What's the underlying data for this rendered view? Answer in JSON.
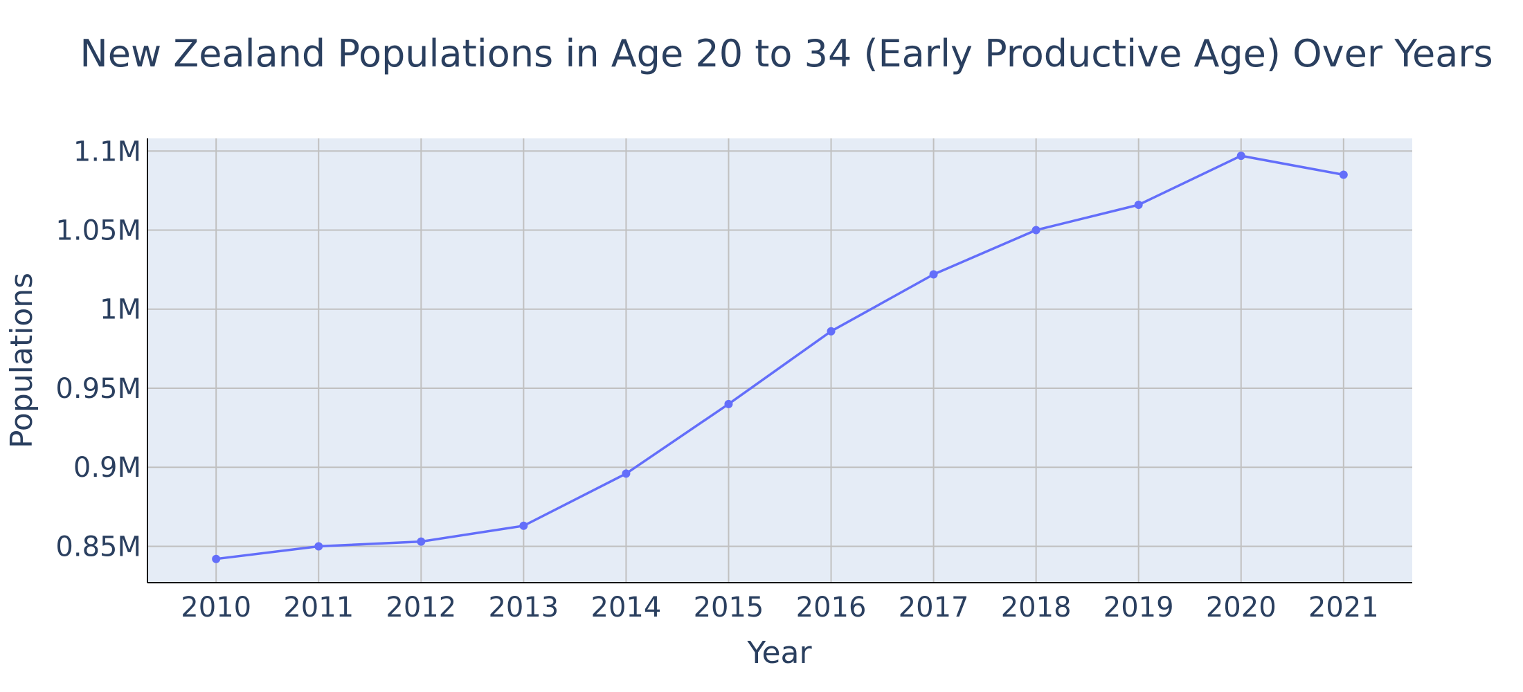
{
  "chart_data": {
    "type": "line",
    "title": "New Zealand Populations in Age 20 to 34 (Early Productive Age) Over Years",
    "xlabel": "Year",
    "ylabel": "Populations",
    "x": [
      2010,
      2011,
      2012,
      2013,
      2014,
      2015,
      2016,
      2017,
      2018,
      2019,
      2020,
      2021
    ],
    "series": [
      {
        "values": [
          842000,
          850000,
          853000,
          863000,
          896000,
          940000,
          986000,
          1022000,
          1050000,
          1066000,
          1097000,
          1085000
        ]
      }
    ],
    "x_ticks": [
      "2010",
      "2011",
      "2012",
      "2013",
      "2014",
      "2015",
      "2016",
      "2017",
      "2018",
      "2019",
      "2020",
      "2021"
    ],
    "y_ticks": [
      {
        "value": 850000,
        "label": "0.85M"
      },
      {
        "value": 900000,
        "label": "0.9M"
      },
      {
        "value": 950000,
        "label": "0.95M"
      },
      {
        "value": 1000000,
        "label": "1M"
      },
      {
        "value": 1050000,
        "label": "1.05M"
      },
      {
        "value": 1100000,
        "label": "1.1M"
      }
    ],
    "xlim": [
      2009.33,
      2021.67
    ],
    "ylim": [
      827000,
      1108000
    ],
    "grid": true,
    "colors": {
      "line": "#636efa",
      "plot_bg": "#e5ecf6",
      "grid": "#c0c0c0",
      "text": "#2a3f5f",
      "axis": "#000000"
    }
  }
}
